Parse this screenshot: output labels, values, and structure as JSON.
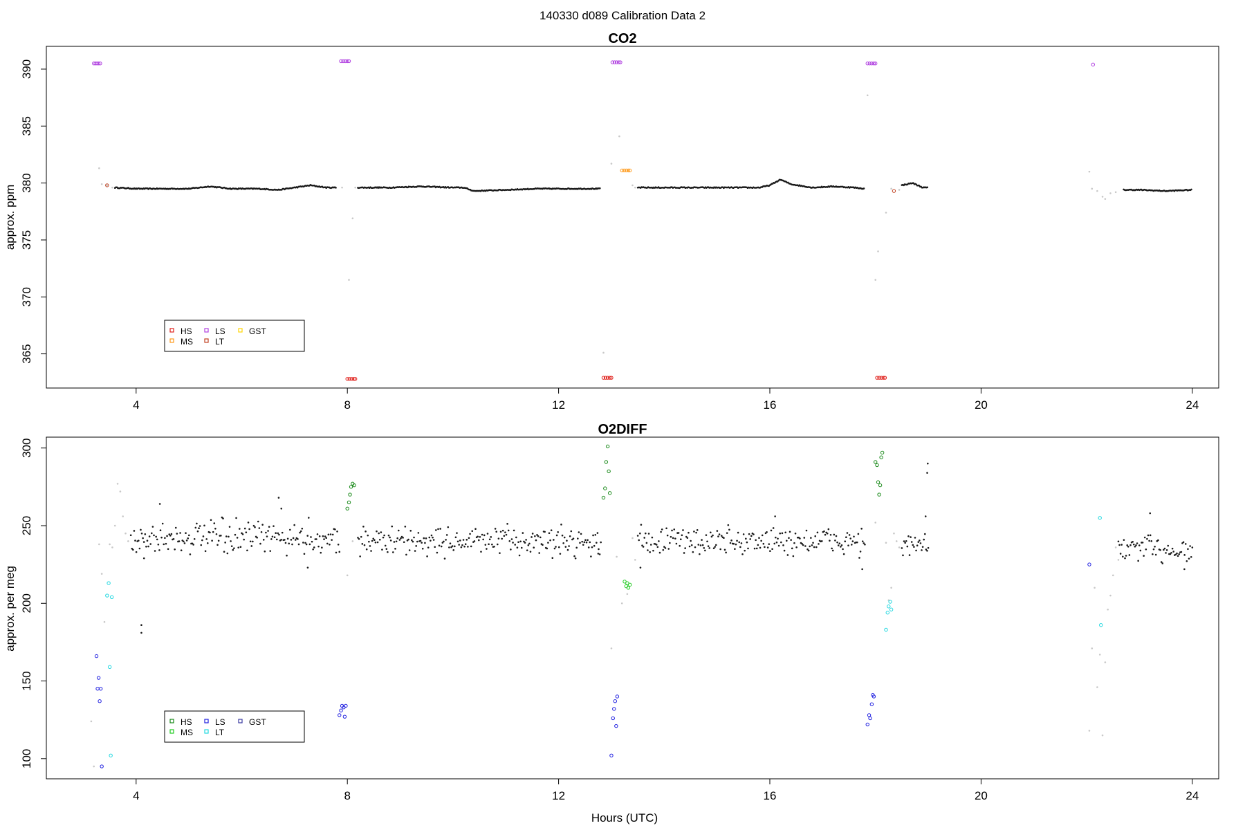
{
  "page_title": "140330   d089   Calibration Data 2",
  "colors": {
    "HS_co2": "#e0201b",
    "MS_co2": "#ff9a1a",
    "LS_co2": "#b040e0",
    "LT_co2": "#c04020",
    "GST_co2": "#ffd400",
    "HS_o2": "#1a8a1a",
    "MS_o2": "#22cc22",
    "LS_o2": "#1f1fe0",
    "LT_o2": "#22d8e0",
    "GST_o2": "#3a3aa0",
    "data": "#1a1a1a",
    "flagged": "#c8c8c8"
  },
  "chart_data": [
    {
      "type": "scatter",
      "title": "CO2",
      "xlabel": "",
      "ylabel": "approx. ppm",
      "xlim": [
        2.3,
        24.5
      ],
      "ylim": [
        362,
        392
      ],
      "x_ticks": [
        4,
        8,
        12,
        16,
        20,
        24
      ],
      "y_ticks": [
        365,
        370,
        375,
        380,
        385,
        390
      ],
      "legend": {
        "position": "bottom-left",
        "entries": [
          {
            "label": "HS",
            "color": "#e0201b"
          },
          {
            "label": "MS",
            "color": "#ff9a1a"
          },
          {
            "label": "LS",
            "color": "#b040e0"
          },
          {
            "label": "LT",
            "color": "#c04020"
          },
          {
            "label": "GST",
            "color": "#ffd400"
          }
        ]
      },
      "data_trace": [
        [
          3.6,
          379.6
        ],
        [
          4.0,
          379.5
        ],
        [
          4.5,
          379.5
        ],
        [
          5.0,
          379.5
        ],
        [
          5.4,
          379.7
        ],
        [
          5.8,
          379.5
        ],
        [
          6.3,
          379.5
        ],
        [
          6.7,
          379.4
        ],
        [
          7.0,
          379.6
        ],
        [
          7.3,
          379.8
        ],
        [
          7.6,
          379.6
        ],
        [
          7.8,
          379.6
        ],
        null,
        [
          8.2,
          379.6
        ],
        [
          8.8,
          379.6
        ],
        [
          9.4,
          379.7
        ],
        [
          10.0,
          379.6
        ],
        [
          10.2,
          379.6
        ],
        [
          10.4,
          379.3
        ],
        [
          11.0,
          379.4
        ],
        [
          11.6,
          379.5
        ],
        [
          12.0,
          379.5
        ],
        [
          12.4,
          379.5
        ],
        [
          12.8,
          379.5
        ],
        null,
        [
          13.5,
          379.6
        ],
        [
          14.0,
          379.6
        ],
        [
          14.6,
          379.6
        ],
        [
          15.2,
          379.6
        ],
        [
          15.8,
          379.6
        ],
        [
          16.0,
          379.8
        ],
        [
          16.2,
          380.3
        ],
        [
          16.4,
          379.9
        ],
        [
          16.8,
          379.6
        ],
        [
          17.2,
          379.7
        ],
        [
          17.6,
          379.6
        ],
        [
          17.8,
          379.5
        ],
        null,
        [
          18.5,
          379.8
        ],
        [
          18.7,
          380.0
        ],
        [
          18.9,
          379.6
        ],
        [
          19.0,
          379.6
        ],
        null,
        [
          22.7,
          379.4
        ],
        [
          23.0,
          379.4
        ],
        [
          23.5,
          379.3
        ],
        [
          24.0,
          379.4
        ]
      ],
      "flagged_points": [
        [
          3.3,
          381.3
        ],
        [
          3.35,
          379.9
        ],
        [
          3.45,
          379.8
        ],
        [
          3.55,
          379.6
        ],
        [
          3.65,
          379.6
        ],
        [
          7.9,
          379.6
        ],
        [
          8.03,
          371.5
        ],
        [
          8.1,
          376.9
        ],
        [
          8.15,
          379.6
        ],
        [
          12.85,
          365.1
        ],
        [
          13.0,
          381.7
        ],
        [
          13.15,
          384.1
        ],
        [
          13.4,
          379.8
        ],
        [
          13.45,
          379.6
        ],
        [
          17.85,
          387.7
        ],
        [
          18.0,
          371.5
        ],
        [
          18.05,
          374.0
        ],
        [
          18.2,
          377.4
        ],
        [
          18.3,
          379.5
        ],
        [
          18.45,
          379.4
        ],
        [
          18.55,
          379.9
        ],
        [
          22.05,
          381.0
        ],
        [
          22.1,
          379.5
        ],
        [
          22.2,
          379.3
        ],
        [
          22.3,
          378.8
        ],
        [
          22.35,
          378.6
        ],
        [
          22.45,
          379.1
        ],
        [
          22.55,
          379.2
        ]
      ],
      "calibration_groups": [
        {
          "label": "LS",
          "points": [
            [
              3.2,
              390.5
            ],
            [
              3.23,
              390.5
            ],
            [
              3.26,
              390.5
            ],
            [
              3.29,
              390.5
            ],
            [
              3.32,
              390.5
            ]
          ]
        },
        {
          "label": "LT",
          "points": [
            [
              3.45,
              379.8
            ]
          ]
        },
        {
          "label": "LS",
          "points": [
            [
              7.88,
              390.7
            ],
            [
              7.92,
              390.7
            ],
            [
              7.96,
              390.7
            ],
            [
              8.0,
              390.7
            ],
            [
              8.03,
              390.7
            ]
          ]
        },
        {
          "label": "HS",
          "points": [
            [
              8.0,
              362.8
            ],
            [
              8.04,
              362.8
            ],
            [
              8.08,
              362.8
            ],
            [
              8.12,
              362.8
            ],
            [
              8.15,
              362.8
            ]
          ]
        },
        {
          "label": "HS",
          "points": [
            [
              12.85,
              362.9
            ],
            [
              12.89,
              362.9
            ],
            [
              12.93,
              362.9
            ],
            [
              12.97,
              362.9
            ],
            [
              13.0,
              362.9
            ]
          ]
        },
        {
          "label": "LS",
          "points": [
            [
              13.02,
              390.6
            ],
            [
              13.06,
              390.6
            ],
            [
              13.1,
              390.6
            ],
            [
              13.14,
              390.6
            ],
            [
              13.17,
              390.6
            ]
          ]
        },
        {
          "label": "MS",
          "points": [
            [
              13.2,
              381.1
            ],
            [
              13.24,
              381.1
            ],
            [
              13.28,
              381.1
            ],
            [
              13.32,
              381.1
            ],
            [
              13.35,
              381.1
            ]
          ]
        },
        {
          "label": "LS",
          "points": [
            [
              17.85,
              390.5
            ],
            [
              17.89,
              390.5
            ],
            [
              17.93,
              390.5
            ],
            [
              17.97,
              390.5
            ],
            [
              18.0,
              390.5
            ]
          ]
        },
        {
          "label": "HS",
          "points": [
            [
              18.03,
              362.9
            ],
            [
              18.07,
              362.9
            ],
            [
              18.11,
              362.9
            ],
            [
              18.15,
              362.9
            ],
            [
              18.18,
              362.9
            ]
          ]
        },
        {
          "label": "LT",
          "points": [
            [
              18.35,
              379.3
            ]
          ]
        },
        {
          "label": "LS",
          "points": [
            [
              22.12,
              390.4
            ]
          ]
        }
      ]
    },
    {
      "type": "scatter",
      "title": "O2DIFF",
      "xlabel": "Hours (UTC)",
      "ylabel": "approx. per meg",
      "xlim": [
        2.3,
        24.5
      ],
      "ylim": [
        87,
        307
      ],
      "x_ticks": [
        4,
        8,
        12,
        16,
        20,
        24
      ],
      "y_ticks": [
        100,
        150,
        200,
        250,
        300
      ],
      "legend": {
        "position": "bottom-left",
        "entries": [
          {
            "label": "HS",
            "color": "#1a8a1a"
          },
          {
            "label": "MS",
            "color": "#22cc22"
          },
          {
            "label": "LS",
            "color": "#1f1fe0"
          },
          {
            "label": "LT",
            "color": "#22d8e0"
          },
          {
            "label": "GST",
            "color": "#3a3aa0"
          }
        ]
      },
      "data_segments": [
        {
          "x_range": [
            3.9,
            7.85
          ],
          "mean": 242,
          "spread": 8
        },
        {
          "x_range": [
            8.2,
            12.8
          ],
          "mean": 240,
          "spread": 7
        },
        {
          "x_range": [
            13.5,
            17.8
          ],
          "mean": 240,
          "spread": 7
        },
        {
          "x_range": [
            18.5,
            19.0
          ],
          "mean": 237,
          "spread": 6
        },
        {
          "x_range": [
            22.6,
            24.0
          ],
          "mean": 235,
          "spread": 7
        }
      ],
      "data_extra_points": [
        [
          4.1,
          186
        ],
        [
          4.1,
          181
        ],
        [
          4.15,
          229
        ],
        [
          4.45,
          264
        ],
        [
          6.7,
          268
        ],
        [
          6.75,
          261
        ],
        [
          7.25,
          223
        ],
        [
          12.75,
          232
        ],
        [
          13.55,
          223
        ],
        [
          16.1,
          256
        ],
        [
          17.75,
          222
        ],
        [
          18.95,
          256
        ],
        [
          18.98,
          284
        ],
        [
          18.99,
          290
        ],
        [
          23.2,
          258
        ],
        [
          23.85,
          222
        ]
      ],
      "flagged_points": [
        [
          3.15,
          124
        ],
        [
          3.2,
          95
        ],
        [
          3.3,
          238
        ],
        [
          3.35,
          219
        ],
        [
          3.4,
          188
        ],
        [
          3.5,
          238
        ],
        [
          3.55,
          236
        ],
        [
          3.6,
          250
        ],
        [
          3.65,
          277
        ],
        [
          3.7,
          272
        ],
        [
          3.75,
          256
        ],
        [
          3.8,
          245
        ],
        [
          3.85,
          240
        ],
        [
          8.0,
          218
        ],
        [
          8.1,
          240
        ],
        [
          13.0,
          171
        ],
        [
          13.1,
          230
        ],
        [
          13.2,
          200
        ],
        [
          13.3,
          206
        ],
        [
          13.4,
          242
        ],
        [
          13.45,
          228
        ],
        [
          18.0,
          252
        ],
        [
          18.2,
          239
        ],
        [
          18.25,
          202
        ],
        [
          18.3,
          210
        ],
        [
          18.35,
          245
        ],
        [
          18.4,
          240
        ],
        [
          18.45,
          236
        ],
        [
          22.05,
          118
        ],
        [
          22.1,
          171
        ],
        [
          22.15,
          210
        ],
        [
          22.2,
          146
        ],
        [
          22.25,
          167
        ],
        [
          22.3,
          115
        ],
        [
          22.35,
          162
        ],
        [
          22.4,
          196
        ],
        [
          22.45,
          205
        ],
        [
          22.5,
          218
        ],
        [
          22.55,
          236
        ],
        [
          22.6,
          228
        ]
      ],
      "calibration_groups": [
        {
          "label": "LS",
          "points": [
            [
              3.25,
              166
            ],
            [
              3.27,
              145
            ],
            [
              3.29,
              152
            ],
            [
              3.31,
              137
            ],
            [
              3.33,
              145
            ],
            [
              3.35,
              95
            ]
          ]
        },
        {
          "label": "LT",
          "points": [
            [
              3.45,
              205
            ],
            [
              3.48,
              213
            ],
            [
              3.5,
              159
            ],
            [
              3.52,
              102
            ],
            [
              3.54,
              204
            ]
          ]
        },
        {
          "label": "LS",
          "points": [
            [
              7.85,
              128
            ],
            [
              7.88,
              131
            ],
            [
              7.9,
              134
            ],
            [
              7.93,
              133
            ],
            [
              7.95,
              127
            ],
            [
              7.97,
              134
            ]
          ]
        },
        {
          "label": "HS",
          "points": [
            [
              8.0,
              261
            ],
            [
              8.03,
              265
            ],
            [
              8.05,
              270
            ],
            [
              8.07,
              275
            ],
            [
              8.1,
              277
            ],
            [
              8.13,
              276
            ]
          ]
        },
        {
          "label": "HS",
          "points": [
            [
              12.85,
              268
            ],
            [
              12.88,
              274
            ],
            [
              12.9,
              291
            ],
            [
              12.93,
              301
            ],
            [
              12.95,
              285
            ],
            [
              12.97,
              271
            ]
          ]
        },
        {
          "label": "LS",
          "points": [
            [
              13.0,
              102
            ],
            [
              13.03,
              126
            ],
            [
              13.05,
              132
            ],
            [
              13.07,
              137
            ],
            [
              13.09,
              121
            ],
            [
              13.11,
              140
            ]
          ]
        },
        {
          "label": "MS",
          "points": [
            [
              13.25,
              214
            ],
            [
              13.28,
              211
            ],
            [
              13.3,
              213
            ],
            [
              13.32,
              210
            ],
            [
              13.35,
              212
            ]
          ]
        },
        {
          "label": "LS",
          "points": [
            [
              17.85,
              122
            ],
            [
              17.88,
              128
            ],
            [
              17.9,
              126
            ],
            [
              17.93,
              135
            ],
            [
              17.95,
              141
            ],
            [
              17.97,
              140
            ]
          ]
        },
        {
          "label": "HS",
          "points": [
            [
              18.0,
              291
            ],
            [
              18.03,
              289
            ],
            [
              18.05,
              278
            ],
            [
              18.07,
              270
            ],
            [
              18.09,
              276
            ],
            [
              18.11,
              294
            ],
            [
              18.13,
              297
            ]
          ]
        },
        {
          "label": "LT",
          "points": [
            [
              18.2,
              183
            ],
            [
              18.23,
              194
            ],
            [
              18.25,
              198
            ],
            [
              18.28,
              201
            ],
            [
              18.3,
              196
            ]
          ]
        },
        {
          "label": "LS",
          "points": [
            [
              22.05,
              225
            ]
          ]
        },
        {
          "label": "LT",
          "points": [
            [
              22.25,
              255
            ],
            [
              22.27,
              186
            ]
          ]
        }
      ]
    }
  ]
}
